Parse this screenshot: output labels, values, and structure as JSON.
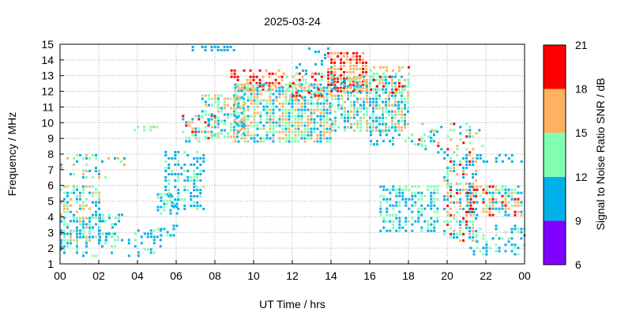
{
  "chart_data": {
    "type": "heatmap",
    "title": "2025-03-24",
    "xlabel": "UT Time / hrs",
    "ylabel": "Frequency / MHz",
    "colorbar_label": "Signal to Noise Ratio SNR / dB",
    "xlim": [
      0,
      24
    ],
    "ylim": [
      1,
      15
    ],
    "x_ticks": [
      "00",
      "02",
      "04",
      "06",
      "08",
      "10",
      "12",
      "14",
      "16",
      "18",
      "20",
      "22",
      "00"
    ],
    "y_ticks": [
      "1",
      "2",
      "3",
      "4",
      "5",
      "6",
      "7",
      "8",
      "9",
      "10",
      "11",
      "12",
      "13",
      "14",
      "15"
    ],
    "grid": true,
    "colorbar": {
      "ticks": [
        "6",
        "9",
        "12",
        "15",
        "18",
        "21"
      ],
      "bins": [
        {
          "min": 6,
          "max": 9,
          "color": "#8000ff"
        },
        {
          "min": 9,
          "max": 12,
          "color": "#00b0e8"
        },
        {
          "min": 12,
          "max": 15,
          "color": "#80ffb0"
        },
        {
          "min": 15,
          "max": 18,
          "color": "#ffb060"
        },
        {
          "min": 18,
          "max": 21,
          "color": "#ff0000"
        }
      ]
    },
    "regions": [
      {
        "t": [
          0.0,
          2.0
        ],
        "f": [
          2.5,
          6.0
        ],
        "snr": [
          9,
          17
        ],
        "density": 0.55
      },
      {
        "t": [
          0.0,
          3.0
        ],
        "f": [
          1.5,
          4.0
        ],
        "snr": [
          9,
          14
        ],
        "density": 0.28
      },
      {
        "t": [
          0.0,
          3.3
        ],
        "f": [
          6.5,
          8.0
        ],
        "snr": [
          9,
          18
        ],
        "density": 0.18
      },
      {
        "t": [
          2.0,
          3.2
        ],
        "f": [
          2.5,
          4.2
        ],
        "snr": [
          9,
          13
        ],
        "density": 0.35
      },
      {
        "t": [
          3.5,
          5.2
        ],
        "f": [
          1.5,
          3.2
        ],
        "snr": [
          9,
          13
        ],
        "density": 0.35
      },
      {
        "t": [
          3.8,
          5.1
        ],
        "f": [
          9.4,
          9.8
        ],
        "snr": [
          9,
          19
        ],
        "density": 0.55
      },
      {
        "t": [
          5.0,
          6.0
        ],
        "f": [
          2.8,
          3.5
        ],
        "snr": [
          9,
          13
        ],
        "density": 0.3
      },
      {
        "t": [
          5.0,
          6.0
        ],
        "f": [
          4.2,
          5.5
        ],
        "snr": [
          9,
          14
        ],
        "density": 0.55
      },
      {
        "t": [
          5.4,
          7.5
        ],
        "f": [
          4.5,
          8.2
        ],
        "snr": [
          9,
          13
        ],
        "density": 0.4
      },
      {
        "t": [
          6.3,
          8.0
        ],
        "f": [
          8.7,
          10.5
        ],
        "snr": [
          9,
          20
        ],
        "density": 0.45
      },
      {
        "t": [
          6.8,
          9.0
        ],
        "f": [
          14.5,
          14.9
        ],
        "snr": [
          9,
          11
        ],
        "density": 0.55
      },
      {
        "t": [
          7.3,
          9.5
        ],
        "f": [
          9.0,
          11.8
        ],
        "snr": [
          9,
          17
        ],
        "density": 0.55
      },
      {
        "t": [
          8.8,
          11.5
        ],
        "f": [
          12.0,
          13.4
        ],
        "snr": [
          15,
          21
        ],
        "density": 0.5
      },
      {
        "t": [
          9.0,
          14.0
        ],
        "f": [
          8.8,
          12.5
        ],
        "snr": [
          9,
          17
        ],
        "density": 0.75
      },
      {
        "t": [
          11.5,
          13.5
        ],
        "f": [
          11.5,
          13.2
        ],
        "snr": [
          12,
          21
        ],
        "density": 0.45
      },
      {
        "t": [
          12.0,
          14.0
        ],
        "f": [
          13.0,
          14.8
        ],
        "snr": [
          9,
          12
        ],
        "density": 0.15
      },
      {
        "t": [
          13.8,
          15.8
        ],
        "f": [
          12.0,
          14.5
        ],
        "snr": [
          15,
          21
        ],
        "density": 0.7
      },
      {
        "t": [
          14.0,
          18.0
        ],
        "f": [
          9.5,
          13.0
        ],
        "snr": [
          9,
          17
        ],
        "density": 0.65
      },
      {
        "t": [
          16.0,
          18.0
        ],
        "f": [
          11.8,
          13.6
        ],
        "snr": [
          12,
          21
        ],
        "density": 0.45
      },
      {
        "t": [
          16.0,
          19.5
        ],
        "f": [
          8.5,
          9.5
        ],
        "snr": [
          9,
          14
        ],
        "density": 0.35
      },
      {
        "t": [
          16.5,
          19.5
        ],
        "f": [
          3.0,
          6.0
        ],
        "snr": [
          9,
          14
        ],
        "density": 0.5
      },
      {
        "t": [
          18.5,
          22.0
        ],
        "f": [
          8.0,
          10.0
        ],
        "snr": [
          9,
          19
        ],
        "density": 0.18
      },
      {
        "t": [
          19.8,
          21.5
        ],
        "f": [
          2.5,
          8.0
        ],
        "snr": [
          9,
          19
        ],
        "density": 0.5
      },
      {
        "t": [
          21.0,
          23.8
        ],
        "f": [
          4.0,
          6.0
        ],
        "snr": [
          9,
          20
        ],
        "density": 0.6
      },
      {
        "t": [
          21.0,
          24.0
        ],
        "f": [
          1.5,
          3.5
        ],
        "snr": [
          9,
          14
        ],
        "density": 0.25
      },
      {
        "t": [
          21.5,
          24.0
        ],
        "f": [
          7.5,
          8.0
        ],
        "snr": [
          9,
          11
        ],
        "density": 0.35
      }
    ]
  }
}
